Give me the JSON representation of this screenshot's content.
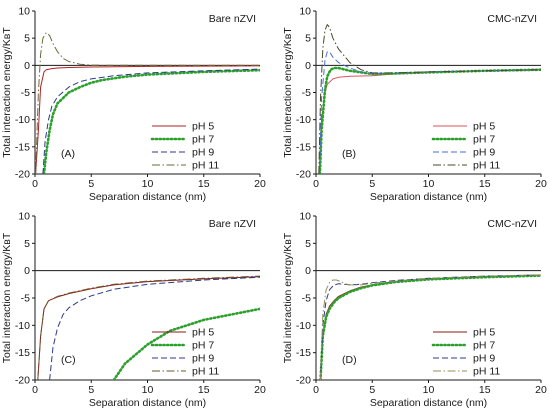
{
  "figure": {
    "xlabel": "Separation distance (nm)",
    "ylabel": "Total interaction energy/KʙT"
  },
  "chart_data": [
    {
      "type": "line",
      "panel": "(A)",
      "title": "Bare nZVI",
      "xlabel": "Separation distance (nm)",
      "ylabel": "Total interaction energy/KʙT",
      "xlim": [
        0,
        20
      ],
      "ylim": [
        -20,
        10
      ],
      "xticks": [
        0,
        5,
        10,
        15,
        20
      ],
      "yticks": [
        -20,
        -15,
        -10,
        -5,
        0,
        5,
        10
      ],
      "legend_position": "bottom-right",
      "series": [
        {
          "name": "pH 5",
          "color": "#b22222",
          "dash": "solid",
          "width": 1,
          "x": [
            0.05,
            0.3,
            0.5,
            0.8,
            1.0,
            1.5,
            2,
            3,
            5,
            10,
            15,
            20
          ],
          "y": [
            -20,
            -12,
            -4,
            -1.2,
            -0.8,
            -0.6,
            -0.5,
            -0.4,
            -0.3,
            -0.2,
            -0.15,
            -0.1
          ]
        },
        {
          "name": "pH 7",
          "color": "#2ca02c",
          "dash": "dotted",
          "width": 2.6,
          "x": [
            0.8,
            1.0,
            1.3,
            1.6,
            2,
            3,
            4,
            5,
            6,
            8,
            10,
            15,
            20
          ],
          "y": [
            -20,
            -16,
            -12,
            -9,
            -7,
            -5,
            -4,
            -3.2,
            -2.7,
            -2.1,
            -1.7,
            -1.2,
            -0.9
          ]
        },
        {
          "name": "pH 9",
          "color": "#2b3a8c",
          "dash": "dashed",
          "width": 1,
          "x": [
            0.7,
            0.9,
            1.2,
            1.5,
            2,
            3,
            4,
            5,
            7,
            10,
            15,
            20
          ],
          "y": [
            -20,
            -14,
            -10,
            -7.5,
            -5.8,
            -4,
            -3,
            -2.5,
            -1.9,
            -1.4,
            -1,
            -0.7
          ]
        },
        {
          "name": "pH 11",
          "color": "#6b6b3a",
          "dash": "dashdot",
          "width": 1,
          "x": [
            0.05,
            0.3,
            0.5,
            0.7,
            1.0,
            1.3,
            1.6,
            2,
            2.5,
            3,
            4,
            5,
            7,
            10,
            15,
            20
          ],
          "y": [
            -20,
            -5,
            2,
            5,
            6,
            5.5,
            4,
            2.5,
            1.3,
            0.7,
            0.2,
            0.05,
            0,
            0,
            0,
            0
          ]
        }
      ]
    },
    {
      "type": "line",
      "panel": "(B)",
      "title": "CMC-nZVI",
      "xlabel": "Separation distance (nm)",
      "ylabel": "Total interaction energy/KʙT",
      "xlim": [
        0,
        20
      ],
      "ylim": [
        -20,
        10
      ],
      "xticks": [
        0,
        5,
        10,
        15,
        20
      ],
      "yticks": [
        -20,
        -15,
        -10,
        -5,
        0,
        5,
        10
      ],
      "legend_position": "bottom-right",
      "series": [
        {
          "name": "pH 5",
          "color": "#e2525f",
          "dash": "solid",
          "width": 1,
          "x": [
            0.3,
            0.5,
            0.8,
            1.0,
            1.5,
            2,
            3,
            5,
            7,
            10,
            15,
            20
          ],
          "y": [
            -20,
            -10,
            -5,
            -3.5,
            -2.5,
            -2.2,
            -2,
            -1.9,
            -1.6,
            -1.3,
            -1,
            -0.8
          ]
        },
        {
          "name": "pH 7",
          "color": "#2ca02c",
          "dash": "dotted",
          "width": 2.6,
          "x": [
            0.35,
            0.5,
            0.8,
            1.0,
            1.3,
            1.6,
            2,
            3,
            5,
            7,
            10,
            15,
            20
          ],
          "y": [
            -20,
            -12,
            -4.5,
            -2,
            -0.8,
            -0.5,
            -0.5,
            -1,
            -1.6,
            -1.5,
            -1.3,
            -1,
            -0.8
          ]
        },
        {
          "name": "pH 9",
          "color": "#4a6fd6",
          "dash": "dashed",
          "width": 1,
          "x": [
            0.3,
            0.5,
            0.8,
            1.0,
            1.2,
            1.5,
            2,
            3,
            4,
            5,
            7,
            10,
            15,
            20
          ],
          "y": [
            -20,
            -6,
            1,
            2.5,
            2.5,
            1.5,
            0.5,
            -0.5,
            -1.2,
            -1.5,
            -1.4,
            -1.2,
            -1,
            -0.8
          ]
        },
        {
          "name": "pH 11",
          "color": "#4a4a2a",
          "dash": "dashdot",
          "width": 1,
          "x": [
            0.25,
            0.4,
            0.6,
            0.8,
            1.0,
            1.2,
            1.5,
            2,
            3,
            4,
            5,
            7,
            10,
            15,
            20
          ],
          "y": [
            -20,
            -6,
            3,
            6.5,
            7.5,
            7,
            5,
            3,
            0.5,
            -0.8,
            -1.4,
            -1.4,
            -1.2,
            -1,
            -0.8
          ]
        }
      ]
    },
    {
      "type": "line",
      "panel": "(C)",
      "title": "Bare nZVI",
      "xlabel": "Separation distance (nm)",
      "ylabel": "Total interaction energy/KʙT",
      "xlim": [
        0,
        20
      ],
      "ylim": [
        -20,
        10
      ],
      "xticks": [
        0,
        5,
        10,
        15,
        20
      ],
      "yticks": [
        -20,
        -15,
        -10,
        -5,
        0,
        5,
        10
      ],
      "legend_position": "bottom-right",
      "series": [
        {
          "name": "pH 5",
          "color": "#8b1a1a",
          "dash": "solid",
          "width": 1,
          "x": [
            0.25,
            0.5,
            0.8,
            1.2,
            2,
            3,
            5,
            7,
            10,
            15,
            20
          ],
          "y": [
            -20,
            -12,
            -7,
            -5.5,
            -4.8,
            -4.2,
            -3.3,
            -2.6,
            -2,
            -1.5,
            -1.1
          ]
        },
        {
          "name": "pH 7",
          "color": "#2ca02c",
          "dash": "dotted",
          "width": 2.6,
          "x": [
            7,
            8,
            10,
            12,
            15,
            18,
            20
          ],
          "y": [
            -20,
            -17,
            -13.5,
            -11,
            -9,
            -7.8,
            -7
          ]
        },
        {
          "name": "pH 9",
          "color": "#2b3a8c",
          "dash": "dashed",
          "width": 1,
          "x": [
            1.3,
            1.6,
            2,
            2.5,
            3,
            4,
            5,
            7,
            10,
            15,
            20
          ],
          "y": [
            -20,
            -14,
            -10.5,
            -8,
            -6.8,
            -5.5,
            -4.6,
            -3.4,
            -2.5,
            -1.7,
            -1.2
          ]
        },
        {
          "name": "pH 11",
          "color": "#6b5a2a",
          "dash": "dashdot",
          "width": 1,
          "x": [
            0.25,
            0.5,
            0.8,
            1.2,
            2,
            3,
            5,
            7,
            10,
            15,
            20
          ],
          "y": [
            -20,
            -12,
            -7,
            -5.5,
            -4.7,
            -4.1,
            -3.2,
            -2.5,
            -1.9,
            -1.4,
            -1
          ]
        }
      ]
    },
    {
      "type": "line",
      "panel": "(D)",
      "title": "CMC-nZVI",
      "xlabel": "Separation distance (nm)",
      "ylabel": "Total interaction energy/KʙT",
      "xlim": [
        0,
        20
      ],
      "ylim": [
        -20,
        10
      ],
      "xticks": [
        0,
        5,
        10,
        15,
        20
      ],
      "yticks": [
        -20,
        -15,
        -10,
        -5,
        0,
        5,
        10
      ],
      "legend_position": "bottom-right",
      "series": [
        {
          "name": "pH 5",
          "color": "#8b1a1a",
          "dash": "solid",
          "width": 1,
          "x": [
            0.4,
            0.6,
            0.9,
            1.2,
            1.6,
            2,
            3,
            4,
            5,
            7,
            10,
            15,
            20
          ],
          "y": [
            -20,
            -12,
            -8,
            -6.5,
            -5.5,
            -4.7,
            -3.7,
            -3,
            -2.6,
            -2,
            -1.5,
            -1.1,
            -0.8
          ]
        },
        {
          "name": "pH 7",
          "color": "#2ca02c",
          "dash": "dotted",
          "width": 2.6,
          "x": [
            0.4,
            0.6,
            0.9,
            1.2,
            1.6,
            2,
            3,
            4,
            5,
            7,
            10,
            15,
            20
          ],
          "y": [
            -20,
            -12,
            -8.5,
            -7,
            -5.8,
            -5,
            -3.9,
            -3.2,
            -2.7,
            -2.1,
            -1.6,
            -1.2,
            -0.9
          ]
        },
        {
          "name": "pH 9",
          "color": "#2b3a8c",
          "dash": "dashed",
          "width": 1,
          "x": [
            0.4,
            0.6,
            0.9,
            1.2,
            1.6,
            2,
            2.5,
            3,
            4,
            5,
            7,
            10,
            15,
            20
          ],
          "y": [
            -20,
            -10,
            -5.5,
            -3.5,
            -2.6,
            -2.4,
            -2.5,
            -2.6,
            -2.5,
            -2.2,
            -1.8,
            -1.4,
            -1,
            -0.8
          ]
        },
        {
          "name": "pH 11",
          "color": "#8f8f5a",
          "dash": "dashdot",
          "width": 1,
          "x": [
            0.4,
            0.6,
            0.9,
            1.2,
            1.5,
            1.8,
            2.2,
            2.6,
            3,
            4,
            5,
            7,
            10,
            15,
            20
          ],
          "y": [
            -20,
            -8,
            -3.5,
            -2.2,
            -1.7,
            -1.7,
            -2,
            -2.4,
            -2.6,
            -2.6,
            -2.3,
            -1.9,
            -1.4,
            -1,
            -0.8
          ]
        }
      ]
    }
  ]
}
